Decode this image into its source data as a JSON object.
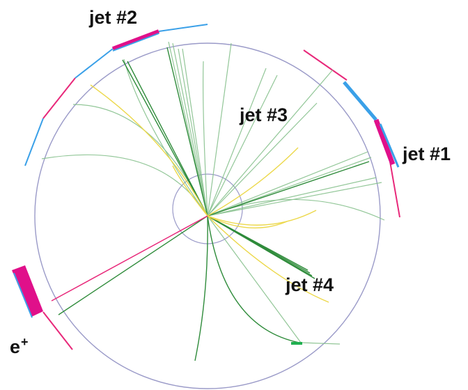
{
  "labels": {
    "jet1": "jet  #1",
    "jet2": "jet  #2",
    "jet3": "jet  #3",
    "jet4": "jet  #4",
    "positron_base": "e",
    "positron_charge": "+"
  },
  "colors": {
    "detector_ring": "#9a9ac8",
    "track_green": "#2e8b3a",
    "track_light_green": "#86c08c",
    "track_yellow": "#ecd84a",
    "electron_track": "#e8287a",
    "calorimeter_magenta": "#e0108a",
    "calorimeter_blue": "#3aa0e8",
    "label_text": "#111111"
  }
}
